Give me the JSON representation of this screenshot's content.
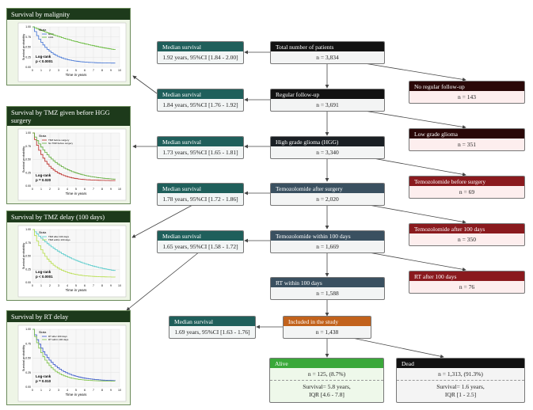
{
  "panels": [
    {
      "title": "Survival by malignity",
      "plot": {
        "ylabel": "Survival probability",
        "xlabel": "Time in years",
        "xticks": [
          "0",
          "1",
          "2",
          "3",
          "4",
          "5",
          "6",
          "7",
          "8",
          "9",
          "10"
        ],
        "yticks": [
          "0.00",
          "0.25",
          "0.50",
          "0.75",
          "1.00"
        ],
        "legend_title": "Strata",
        "legend": [
          "HGG",
          "LGG"
        ],
        "test": "Log-rank",
        "p": "p < 0.0001"
      }
    },
    {
      "title": "Survival by TMZ given before HGG surgery",
      "plot": {
        "ylabel": "Survival probability",
        "xlabel": "Time in years",
        "xticks": [
          "0",
          "1",
          "2",
          "3",
          "4",
          "5",
          "6",
          "7",
          "8",
          "9",
          "10"
        ],
        "yticks": [
          "0.00",
          "0.25",
          "0.50",
          "0.75",
          "1.00"
        ],
        "legend_title": "Strata",
        "legend": [
          "TMZ before surgery",
          "No TMZ before surgery"
        ],
        "test": "Log-rank",
        "p": "p = 0.020"
      }
    },
    {
      "title": "Survival by TMZ delay (100 days)",
      "plot": {
        "ylabel": "Survival probability",
        "xlabel": "Time in years",
        "xticks": [
          "0",
          "1",
          "2",
          "3",
          "4",
          "5",
          "6",
          "7",
          "8",
          "9",
          "10"
        ],
        "yticks": [
          "0.00",
          "0.25",
          "0.50",
          "0.75",
          "1.00"
        ],
        "legend_title": "Strata",
        "legend": [
          "TMZ after 100 days",
          "TMZ within 100 days"
        ],
        "test": "Log-rank",
        "p": "p < 0.0001"
      }
    },
    {
      "title": "Survival by RT delay",
      "plot": {
        "ylabel": "Survival probability",
        "xlabel": "Time in years",
        "xticks": [
          "0",
          "1",
          "2",
          "3",
          "4",
          "5",
          "6",
          "7",
          "8",
          "9",
          "10"
        ],
        "yticks": [
          "0.00",
          "0.25",
          "0.50",
          "0.75",
          "1.00"
        ],
        "legend_title": "Strata",
        "legend": [
          "RT after 100 days",
          "RT within 100 days"
        ],
        "test": "Log-rank",
        "p": "p = 0.010"
      }
    }
  ],
  "median_survival": [
    {
      "title": "Median survival",
      "text": "1.92 years, 95%CI [1.84 - 2.00]"
    },
    {
      "title": "Median survival",
      "text": "1.84 years, 95%CI [1.76 - 1.92]"
    },
    {
      "title": "Median survival",
      "text": "1.73 years, 95%CI [1.65 - 1.81]"
    },
    {
      "title": "Median survival",
      "text": "1.78 years, 95%CI [1.72 - 1.86]"
    },
    {
      "title": "Median survival",
      "text": "1.65 years, 95%CI [1.58 - 1.72]"
    },
    {
      "title": "Median survival",
      "text": "1.69 years, 95%CI [1.63 - 1.76]"
    }
  ],
  "flow": [
    {
      "title": "Total number of patients",
      "text": "n = 3,834"
    },
    {
      "title": "Regular follow-up",
      "text": "n = 3,691"
    },
    {
      "title": "High grade glioma (HGG)",
      "text": "n = 3,340"
    },
    {
      "title": "Temozolomide after surgery",
      "text": "n = 2,020"
    },
    {
      "title": "Temozolomide within 100 days",
      "text": "n = 1,669"
    },
    {
      "title": "RT within 100 days",
      "text": "n = 1,588"
    },
    {
      "title": "Included in the study",
      "text": "n = 1,438"
    }
  ],
  "excluded": [
    {
      "title": "No regular follow-up",
      "text": "n = 143"
    },
    {
      "title": "Low grade glioma",
      "text": "n = 351"
    },
    {
      "title": "Temozolomide before surgery",
      "text": "n = 69"
    },
    {
      "title": "Temozolomide after 100 days",
      "text": "n = 350"
    },
    {
      "title": "RT after 100 days",
      "text": "n = 76"
    }
  ],
  "outcomes": [
    {
      "title": "Alive",
      "n": "n = 125, (8.7%)",
      "survival": "Survival= 5.8 years,",
      "iqr": "IQR [4.6 - 7.8]"
    },
    {
      "title": "Dead",
      "n": "n = 1,313, (91.3%)",
      "survival": "Survival= 1.6 years,",
      "iqr": "IQR [1 - 2.5]"
    }
  ]
}
